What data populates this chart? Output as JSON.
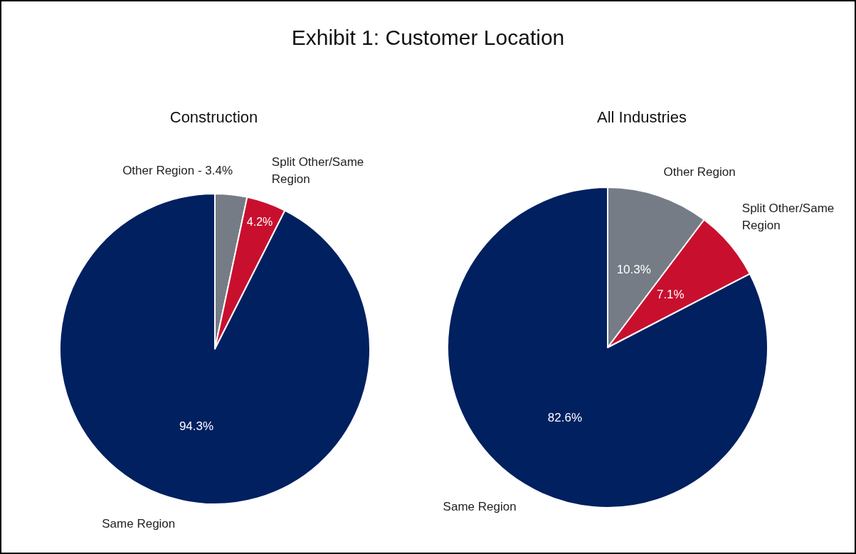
{
  "chart_data": [
    {
      "type": "pie",
      "title": "Construction",
      "annotations": [
        "Exhibit 1: Customer Location"
      ],
      "categories": [
        "Other Region",
        "Split Other/Same Region",
        "Same Region"
      ],
      "values": [
        3.4,
        4.2,
        94.3
      ],
      "colors": [
        "#767c86",
        "#c8102e",
        "#002060"
      ],
      "value_labels": [
        "3.4%",
        "4.2%",
        "94.3%"
      ]
    },
    {
      "type": "pie",
      "title": "All Industries",
      "categories": [
        "Other Region",
        "Split Other/Same Region",
        "Same Region"
      ],
      "values": [
        10.3,
        7.1,
        82.6
      ],
      "colors": [
        "#767c86",
        "#c8102e",
        "#002060"
      ],
      "value_labels": [
        "10.3%",
        "7.1%",
        "82.6%"
      ]
    }
  ]
}
